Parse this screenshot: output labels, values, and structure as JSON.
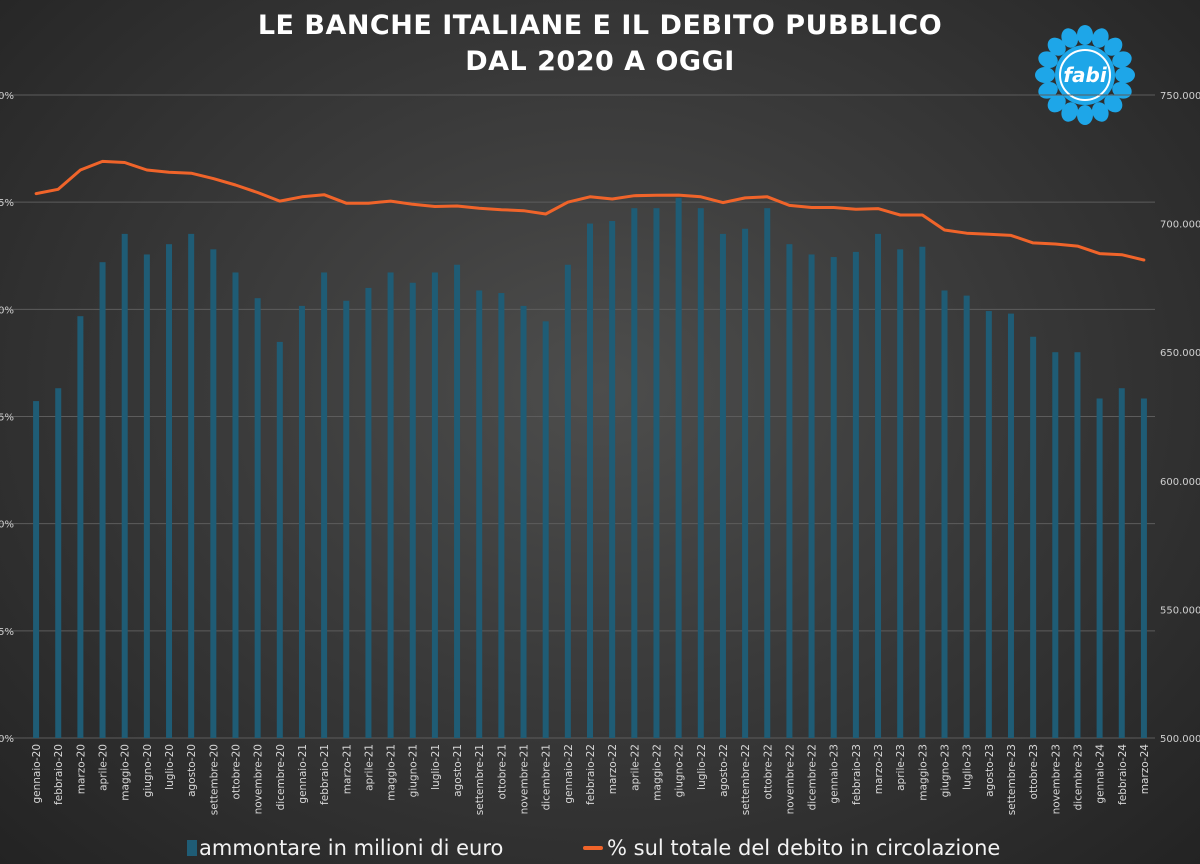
{
  "header": {
    "title_line1": "LE BANCHE ITALIANE E IL DEBITO PUBBLICO",
    "title_line2": "DAL 2020 A OGGI"
  },
  "logo": {
    "text": "fabi"
  },
  "legend": {
    "bars_label": "ammontare in milioni di euro",
    "line_label": "% sul totale del debito in circolazione"
  },
  "colors": {
    "bar": "#1f5c75",
    "line": "#f0642a",
    "logo_blue": "#1ea6e8"
  },
  "chart_data": {
    "type": "bar",
    "categories": [
      "gennaio-20",
      "febbraio-20",
      "marzo-20",
      "aprile-20",
      "maggio-20",
      "giugno-20",
      "luglio-20",
      "agosto-20",
      "settembre-20",
      "ottobre-20",
      "novembre-20",
      "dicembre-20",
      "gennaio-21",
      "febbraio-21",
      "marzo-21",
      "aprile-21",
      "maggio-21",
      "giugno-21",
      "luglio-21",
      "agosto-21",
      "settembre-21",
      "ottobre-21",
      "novembre-21",
      "dicembre-21",
      "gennaio-22",
      "febbraio-22",
      "marzo-22",
      "aprile-22",
      "maggio-22",
      "giugno-22",
      "luglio-22",
      "agosto-22",
      "settembre-22",
      "ottobre-22",
      "novembre-22",
      "dicembre-22",
      "gennaio-23",
      "febbraio-23",
      "marzo-23",
      "aprile-23",
      "maggio-23",
      "giugno-23",
      "luglio-23",
      "agosto-23",
      "settembre-23",
      "ottobre-23",
      "novembre-23",
      "dicembre-23",
      "gennaio-24",
      "febbraio-24",
      "marzo-24"
    ],
    "series": [
      {
        "name": "ammontare in milioni di euro",
        "axis": "right",
        "type": "bar",
        "values": [
          631,
          636,
          664,
          685,
          696,
          688,
          692,
          696,
          690,
          681,
          671,
          654,
          668,
          681,
          670,
          675,
          681,
          677,
          681,
          684,
          674,
          673,
          668,
          662,
          684,
          700,
          701,
          706,
          706,
          710,
          706,
          696,
          698,
          706,
          692,
          688,
          687,
          689,
          696,
          690,
          691,
          674,
          672,
          666,
          665,
          656,
          650,
          650,
          632,
          636,
          632
        ]
      },
      {
        "name": "% sul totale del debito in circolazione",
        "axis": "left",
        "type": "line",
        "values": [
          25.4,
          25.6,
          26.5,
          26.9,
          26.85,
          26.5,
          26.4,
          26.35,
          26.1,
          25.8,
          25.45,
          25.05,
          25.25,
          25.35,
          24.95,
          24.95,
          25.05,
          24.9,
          24.8,
          24.82,
          24.72,
          24.65,
          24.6,
          24.45,
          25.0,
          25.25,
          25.15,
          25.3,
          25.32,
          25.33,
          25.25,
          24.98,
          25.2,
          25.25,
          24.85,
          24.75,
          24.75,
          24.67,
          24.7,
          24.4,
          24.4,
          23.7,
          23.55,
          23.5,
          23.45,
          23.1,
          23.05,
          22.95,
          22.6,
          22.55,
          22.3
        ]
      }
    ],
    "y_left": {
      "ticks": [
        "0%",
        "5%",
        "10%",
        "15%",
        "20%",
        "25%",
        "30%"
      ],
      "range": [
        0,
        30
      ]
    },
    "y_right": {
      "ticks": [
        "500.000",
        "550.000",
        "600.000",
        "650.000",
        "700.000",
        "750.000"
      ],
      "range": [
        500000,
        750000
      ]
    },
    "grid": true,
    "legend_position": "bottom"
  }
}
